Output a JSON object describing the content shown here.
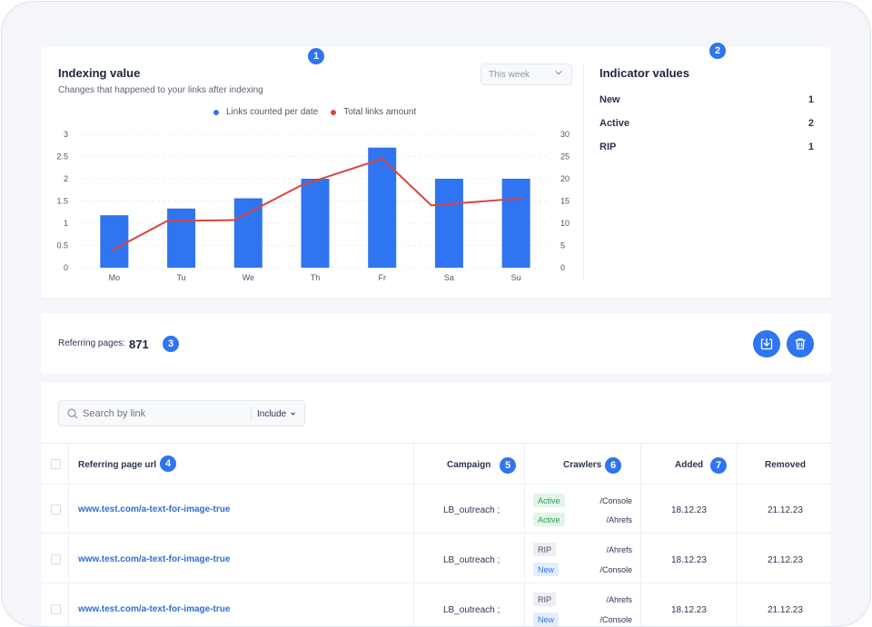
{
  "badges": [
    "1",
    "2",
    "3",
    "4",
    "5",
    "6",
    "7"
  ],
  "chart_section": {
    "title": "Indexing value",
    "subtitle": "Changes that happened to your links after indexing",
    "period_select": "This week",
    "legend": [
      {
        "label": "Links counted per date",
        "color": "#2f74f0"
      },
      {
        "label": "Total links amount",
        "color": "#d9443f"
      }
    ]
  },
  "chart_data": {
    "type": "bar",
    "categories": [
      "Mo",
      "Tu",
      "We",
      "Th",
      "Fr",
      "Sa",
      "Su"
    ],
    "series": [
      {
        "name": "Links counted per date",
        "type": "bar",
        "axis": "left",
        "color": "#2f74f0",
        "values": [
          1.18,
          1.33,
          1.56,
          2.0,
          2.7,
          2.0,
          2.0
        ]
      },
      {
        "name": "Total links amount",
        "type": "line",
        "axis": "right",
        "color": "#d9443f",
        "values": [
          3.8,
          10.5,
          10.7,
          18.5,
          24.5,
          14,
          15.6
        ]
      }
    ],
    "y_left": {
      "min": 0,
      "max": 3,
      "ticks": [
        "0",
        "0.5",
        "1",
        "1.5",
        "2",
        "2.5",
        "3"
      ]
    },
    "y_right": {
      "min": 0,
      "max": 30,
      "ticks": [
        "0",
        "5",
        "10",
        "15",
        "20",
        "25",
        "30"
      ]
    },
    "grid": true,
    "legend_position": "top-center"
  },
  "indicators": {
    "title": "Indicator values",
    "items": [
      {
        "label": "New",
        "value": "1"
      },
      {
        "label": "Active",
        "value": "2"
      },
      {
        "label": "RIP",
        "value": "1"
      }
    ]
  },
  "referring": {
    "label": "Referring pages:",
    "count": "871"
  },
  "search": {
    "placeholder": "Search by link",
    "filter": "Include"
  },
  "table": {
    "headers": {
      "url": "Referring page url",
      "campaign": "Campaign",
      "crawlers": "Crawlers",
      "added": "Added",
      "removed": "Removed"
    },
    "rows": [
      {
        "url": "www.test.com/a-text-for-image-true",
        "campaign": "LB_outreach ;",
        "crawlers": [
          {
            "status": "Active",
            "kind": "active",
            "name": "/Console"
          },
          {
            "status": "Active",
            "kind": "active",
            "name": "/Ahrefs"
          }
        ],
        "added": "18.12.23",
        "removed": "21.12.23"
      },
      {
        "url": "www.test.com/a-text-for-image-true",
        "campaign": "LB_outreach ;",
        "crawlers": [
          {
            "status": "RIP",
            "kind": "rip",
            "name": "/Ahrefs"
          },
          {
            "status": "New",
            "kind": "new",
            "name": "/Console"
          }
        ],
        "added": "18.12.23",
        "removed": "21.12.23"
      },
      {
        "url": "www.test.com/a-text-for-image-true",
        "campaign": "LB_outreach ;",
        "crawlers": [
          {
            "status": "RIP",
            "kind": "rip",
            "name": "/Ahrefs"
          },
          {
            "status": "New",
            "kind": "new",
            "name": "/Console"
          }
        ],
        "added": "18.12.23",
        "removed": "21.12.23"
      }
    ]
  }
}
